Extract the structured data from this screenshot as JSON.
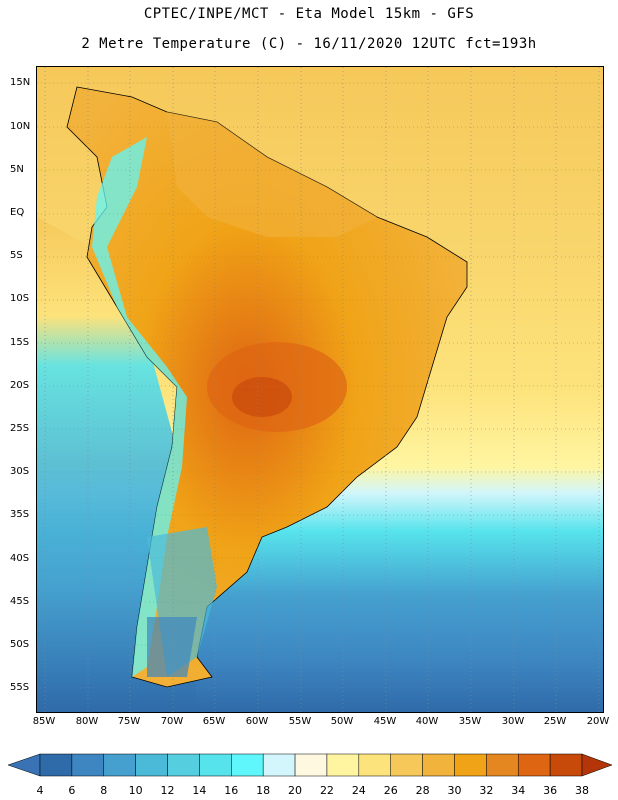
{
  "header": {
    "title_line1": "CPTEC/INPE/MCT -  Eta Model 15km - GFS",
    "title_line2": "2 Metre Temperature (C) - 16/11/2020 12UTC fct=193h"
  },
  "map": {
    "lat_labels": [
      "15N",
      "10N",
      "5N",
      "EQ",
      "5S",
      "10S",
      "15S",
      "20S",
      "25S",
      "30S",
      "35S",
      "40S",
      "45S",
      "50S",
      "55S"
    ],
    "lon_labels": [
      "85W",
      "80W",
      "75W",
      "70W",
      "65W",
      "60W",
      "55W",
      "50W",
      "45W",
      "40W",
      "35W",
      "30W",
      "25W",
      "20W"
    ],
    "extent": {
      "west": -85,
      "east": -20,
      "north": 16,
      "south": -58
    }
  },
  "colorbar": {
    "labels": [
      "4",
      "6",
      "8",
      "10",
      "12",
      "14",
      "16",
      "18",
      "20",
      "22",
      "24",
      "26",
      "28",
      "30",
      "32",
      "34",
      "36",
      "38"
    ],
    "colors": [
      "#3a73b5",
      "#2f6aa9",
      "#3d86c1",
      "#45a0cf",
      "#4bbad8",
      "#55cfe0",
      "#57e3ec",
      "#5ff7fb",
      "#d2f6fb",
      "#fff8e1",
      "#fff5a1",
      "#fde37c",
      "#f6c85a",
      "#f2b33d",
      "#f0a317",
      "#e48720",
      "#de6512",
      "#c84a0b",
      "#b33508"
    ]
  }
}
